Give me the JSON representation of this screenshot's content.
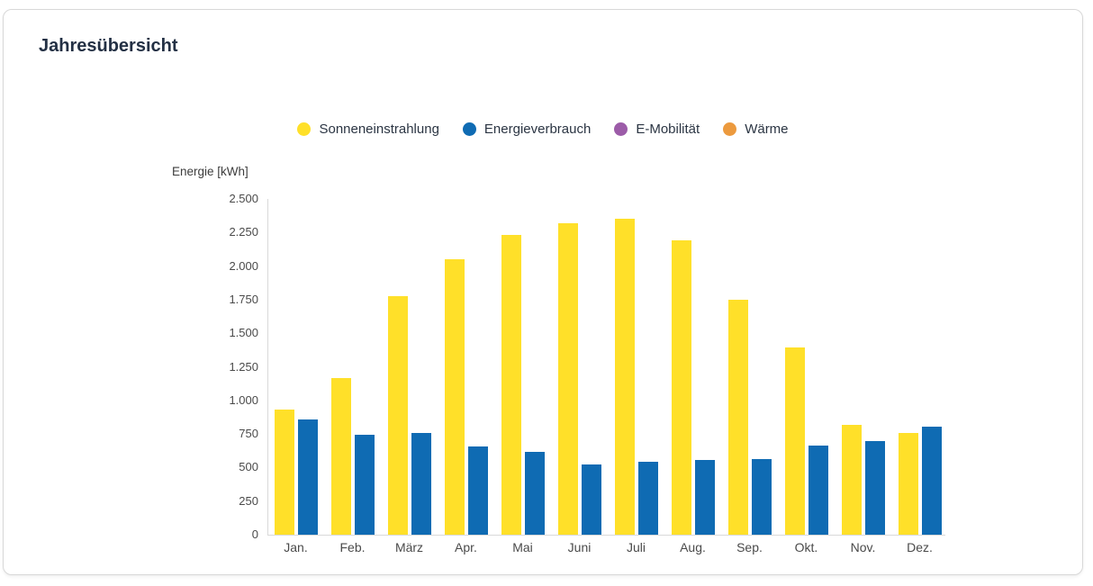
{
  "card": {
    "title": "Jahresübersicht"
  },
  "legend": [
    {
      "label": "Sonneneinstrahlung",
      "color": "#FFE029"
    },
    {
      "label": "Energieverbrauch",
      "color": "#0F6BB3"
    },
    {
      "label": "E-Mobilität",
      "color": "#9C5CA8"
    },
    {
      "label": "Wärme",
      "color": "#EC9A3E"
    }
  ],
  "chart_data": {
    "type": "bar",
    "title": "Jahresübersicht",
    "xlabel": "",
    "ylabel": "Energie [kWh]",
    "ylim": [
      0,
      2500
    ],
    "y_tick_step": 250,
    "y_tick_labels": [
      "0",
      "250",
      "500",
      "750",
      "1.000",
      "1.250",
      "1.500",
      "1.750",
      "2.000",
      "2.250",
      "2.500"
    ],
    "grid": false,
    "legend_position": "top",
    "categories": [
      "Jan.",
      "Feb.",
      "März",
      "Apr.",
      "Mai",
      "Juni",
      "Juli",
      "Aug.",
      "Sep.",
      "Okt.",
      "Nov.",
      "Dez."
    ],
    "series": [
      {
        "name": "Sonneneinstrahlung",
        "color": "#FFE029",
        "values": [
          930,
          1165,
          1775,
          2050,
          2230,
          2320,
          2350,
          2190,
          1750,
          1395,
          815,
          755
        ]
      },
      {
        "name": "Energieverbrauch",
        "color": "#0F6BB3",
        "values": [
          860,
          745,
          760,
          655,
          615,
          520,
          545,
          555,
          565,
          665,
          695,
          805
        ]
      },
      {
        "name": "E-Mobilität",
        "color": "#9C5CA8",
        "values": [
          0,
          0,
          0,
          0,
          0,
          0,
          0,
          0,
          0,
          0,
          0,
          0
        ]
      },
      {
        "name": "Wärme",
        "color": "#EC9A3E",
        "values": [
          0,
          0,
          0,
          0,
          0,
          0,
          0,
          0,
          0,
          0,
          0,
          0
        ]
      }
    ]
  }
}
